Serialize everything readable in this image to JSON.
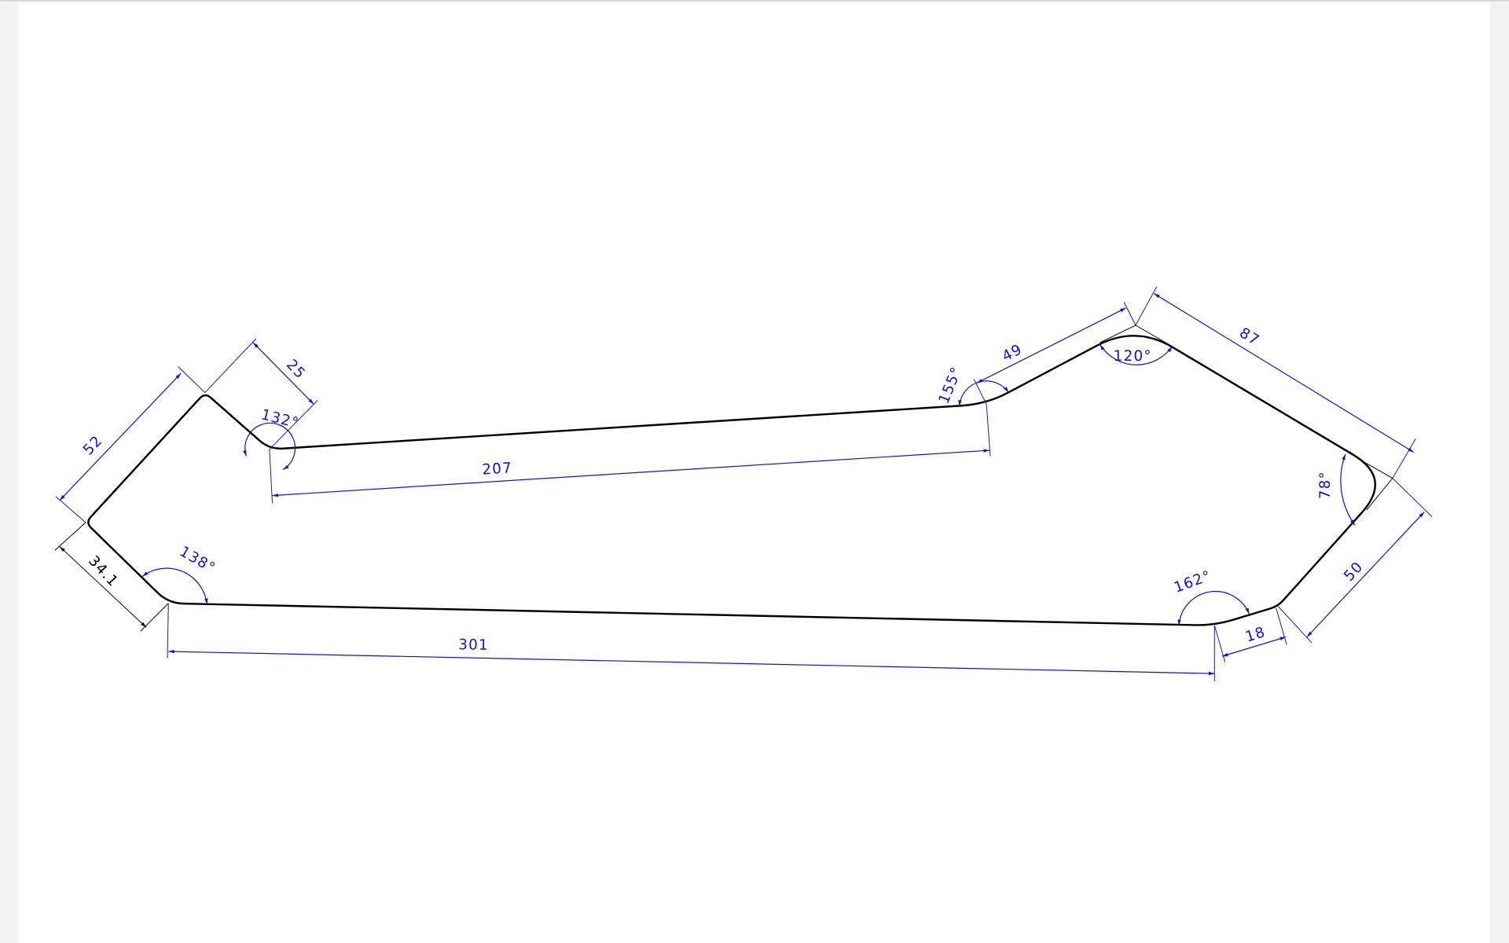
{
  "drawing": {
    "dimension_color": "#1010e0",
    "linear_dimensions": {
      "d52": "52",
      "d25": "25",
      "d207": "207",
      "d49": "49",
      "d87": "87",
      "d50": "50",
      "d18": "18",
      "d301": "301",
      "d34": "34.1"
    },
    "angular_dimensions": {
      "a132": "132°",
      "a155": "155°",
      "a120": "120°",
      "a78": "78°",
      "a162": "162°",
      "a138": "138°"
    }
  }
}
